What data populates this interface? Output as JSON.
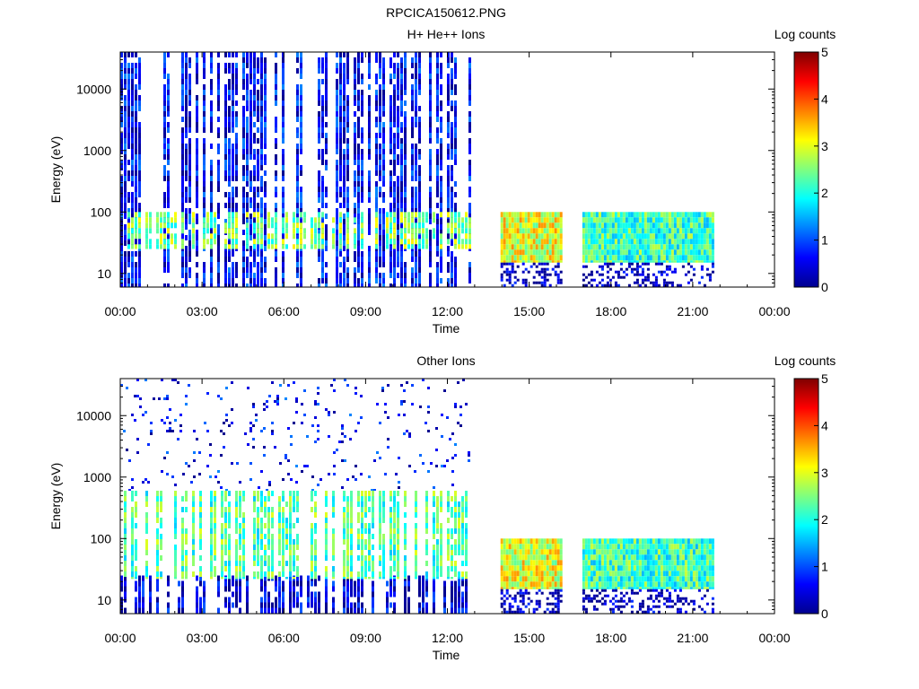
{
  "figure": {
    "title": "RPCICA150612.PNG"
  },
  "colors": {
    "colormap": [
      "#00008f",
      "#0000ff",
      "#007fff",
      "#00ffff",
      "#7fff7f",
      "#ffff00",
      "#ff7f00",
      "#ff0000",
      "#7f0000"
    ],
    "background": "#ffffff",
    "axes": "#000000"
  },
  "chart_data": [
    {
      "type": "heatmap",
      "title": "H+ He++ Ions",
      "xlabel": "Time",
      "ylabel": "Energy (eV)",
      "x_ticks": [
        "00:00",
        "03:00",
        "06:00",
        "09:00",
        "12:00",
        "15:00",
        "18:00",
        "21:00",
        "00:00"
      ],
      "xlim_hours": [
        0,
        24
      ],
      "y_scale": "log",
      "y_ticks": [
        "10",
        "100",
        "1000",
        "10000"
      ],
      "ylim": [
        6,
        40000
      ],
      "colorbar": {
        "label": "Log counts",
        "ticks": [
          "0",
          "1",
          "2",
          "3",
          "4",
          "5"
        ],
        "range": [
          0,
          5
        ]
      },
      "coverage_hours": [
        [
          0.0,
          12.8
        ],
        [
          13.95,
          16.2
        ],
        [
          16.95,
          21.7
        ]
      ],
      "regions": [
        {
          "x": [
            0.0,
            12.8
          ],
          "energy": [
            6,
            40000
          ],
          "log_counts": 0.6,
          "pattern": "striped"
        },
        {
          "x": [
            0.0,
            12.8
          ],
          "energy": [
            25,
            100
          ],
          "log_counts": 2.5,
          "pattern": "striped"
        },
        {
          "x": [
            13.95,
            16.2
          ],
          "energy": [
            15,
            100
          ],
          "log_counts": 3.0,
          "pattern": "solid"
        },
        {
          "x": [
            13.95,
            16.2
          ],
          "energy": [
            6,
            15
          ],
          "log_counts": 0.2,
          "pattern": "speckle"
        },
        {
          "x": [
            16.95,
            21.7
          ],
          "energy": [
            15,
            100
          ],
          "log_counts": 2.2,
          "pattern": "solid"
        },
        {
          "x": [
            16.95,
            21.7
          ],
          "energy": [
            6,
            15
          ],
          "log_counts": 0.2,
          "pattern": "speckle"
        }
      ]
    },
    {
      "type": "heatmap",
      "title": "Other Ions",
      "xlabel": "Time",
      "ylabel": "Energy (eV)",
      "x_ticks": [
        "00:00",
        "03:00",
        "06:00",
        "09:00",
        "12:00",
        "15:00",
        "18:00",
        "21:00",
        "00:00"
      ],
      "xlim_hours": [
        0,
        24
      ],
      "y_scale": "log",
      "y_ticks": [
        "10",
        "100",
        "1000",
        "10000"
      ],
      "ylim": [
        6,
        40000
      ],
      "colorbar": {
        "label": "Log counts",
        "ticks": [
          "0",
          "1",
          "2",
          "3",
          "4",
          "5"
        ],
        "range": [
          0,
          5
        ]
      },
      "coverage_hours": [
        [
          0.0,
          12.8
        ],
        [
          13.95,
          16.2
        ],
        [
          16.95,
          21.7
        ]
      ],
      "regions": [
        {
          "x": [
            0.0,
            12.8
          ],
          "energy": [
            6,
            25
          ],
          "log_counts": 0.4,
          "pattern": "striped"
        },
        {
          "x": [
            0.0,
            12.8
          ],
          "energy": [
            22,
            600
          ],
          "log_counts": 2.3,
          "pattern": "striped"
        },
        {
          "x": [
            0.0,
            12.8
          ],
          "energy": [
            600,
            40000
          ],
          "log_counts": 0.6,
          "pattern": "sparse"
        },
        {
          "x": [
            13.95,
            16.2
          ],
          "energy": [
            15,
            100
          ],
          "log_counts": 3.0,
          "pattern": "solid"
        },
        {
          "x": [
            13.95,
            16.2
          ],
          "energy": [
            6,
            15
          ],
          "log_counts": 0.2,
          "pattern": "speckle"
        },
        {
          "x": [
            16.95,
            21.7
          ],
          "energy": [
            15,
            100
          ],
          "log_counts": 2.2,
          "pattern": "solid"
        },
        {
          "x": [
            16.95,
            21.7
          ],
          "energy": [
            6,
            15
          ],
          "log_counts": 0.2,
          "pattern": "speckle"
        }
      ]
    }
  ]
}
